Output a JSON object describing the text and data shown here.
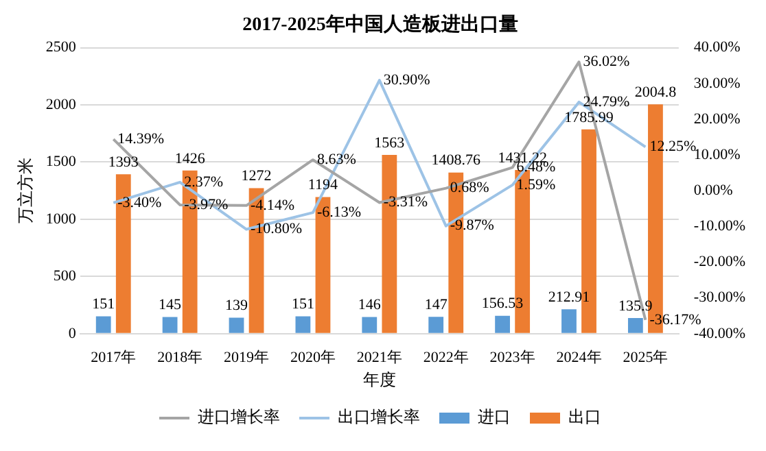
{
  "chart_data": {
    "type": "bar",
    "title": "2017-2025年中国人造板进出口量",
    "xlabel": "年度",
    "ylabel": "万立方米",
    "categories": [
      "2017年",
      "2018年",
      "2019年",
      "2020年",
      "2021年",
      "2022年",
      "2023年",
      "2024年",
      "2025年"
    ],
    "series": [
      {
        "name": "进口",
        "color": "#5b9bd5",
        "values": [
          151,
          145,
          139,
          151,
          146,
          147,
          156.53,
          212.91,
          135.9
        ],
        "value_labels": [
          "151",
          "145",
          "139",
          "151",
          "146",
          "147",
          "156.53",
          "212.91",
          "135.9"
        ]
      },
      {
        "name": "出口",
        "color": "#ed7d31",
        "values": [
          1393,
          1426,
          1272,
          1194,
          1563,
          1408.76,
          1431.22,
          1785.99,
          2004.8
        ],
        "value_labels": [
          "1393",
          "1426",
          "1272",
          "1194",
          "1563",
          "1408.76",
          "1431.22",
          "1785.99",
          "2004.8"
        ]
      },
      {
        "name": "进口增长率",
        "type": "line",
        "axis": "y2",
        "color": "#a5a5a5",
        "values": [
          14.39,
          -3.97,
          -4.14,
          8.63,
          -3.31,
          0.68,
          6.48,
          36.02,
          -36.17
        ],
        "value_labels": [
          "14.39%",
          "-3.97%",
          "-4.14%",
          "8.63%",
          "-3.31%",
          "0.68%",
          "6.48%",
          "36.02%",
          "-36.17%"
        ]
      },
      {
        "name": "出口增长率",
        "type": "line",
        "axis": "y2",
        "color": "#9dc3e6",
        "values": [
          -3.4,
          2.37,
          -10.8,
          -6.13,
          30.9,
          -9.87,
          1.59,
          24.79,
          12.25
        ],
        "value_labels": [
          "-3.40%",
          "2.37%",
          "-10.80%",
          "-6.13%",
          "30.90%",
          "-9.87%",
          "1.59%",
          "24.79%",
          "12.25%"
        ]
      }
    ],
    "ylim": [
      0,
      2500
    ],
    "yticks": [
      0,
      500,
      1000,
      1500,
      2000,
      2500
    ],
    "y2lim": [
      -40,
      40
    ],
    "y2ticks": [
      {
        "value": -40,
        "label": "-40.00%"
      },
      {
        "value": -30,
        "label": "-30.00%"
      },
      {
        "value": -20,
        "label": "-20.00%"
      },
      {
        "value": -10,
        "label": "-10.00%"
      },
      {
        "value": 0,
        "label": "0.00%"
      },
      {
        "value": 10,
        "label": "10.00%"
      },
      {
        "value": 20,
        "label": "20.00%"
      },
      {
        "value": 30,
        "label": "30.00%"
      },
      {
        "value": 40,
        "label": "40.00%"
      }
    ],
    "grid": "y",
    "legend": "bottom",
    "marker": "none",
    "line_style": "solid"
  }
}
